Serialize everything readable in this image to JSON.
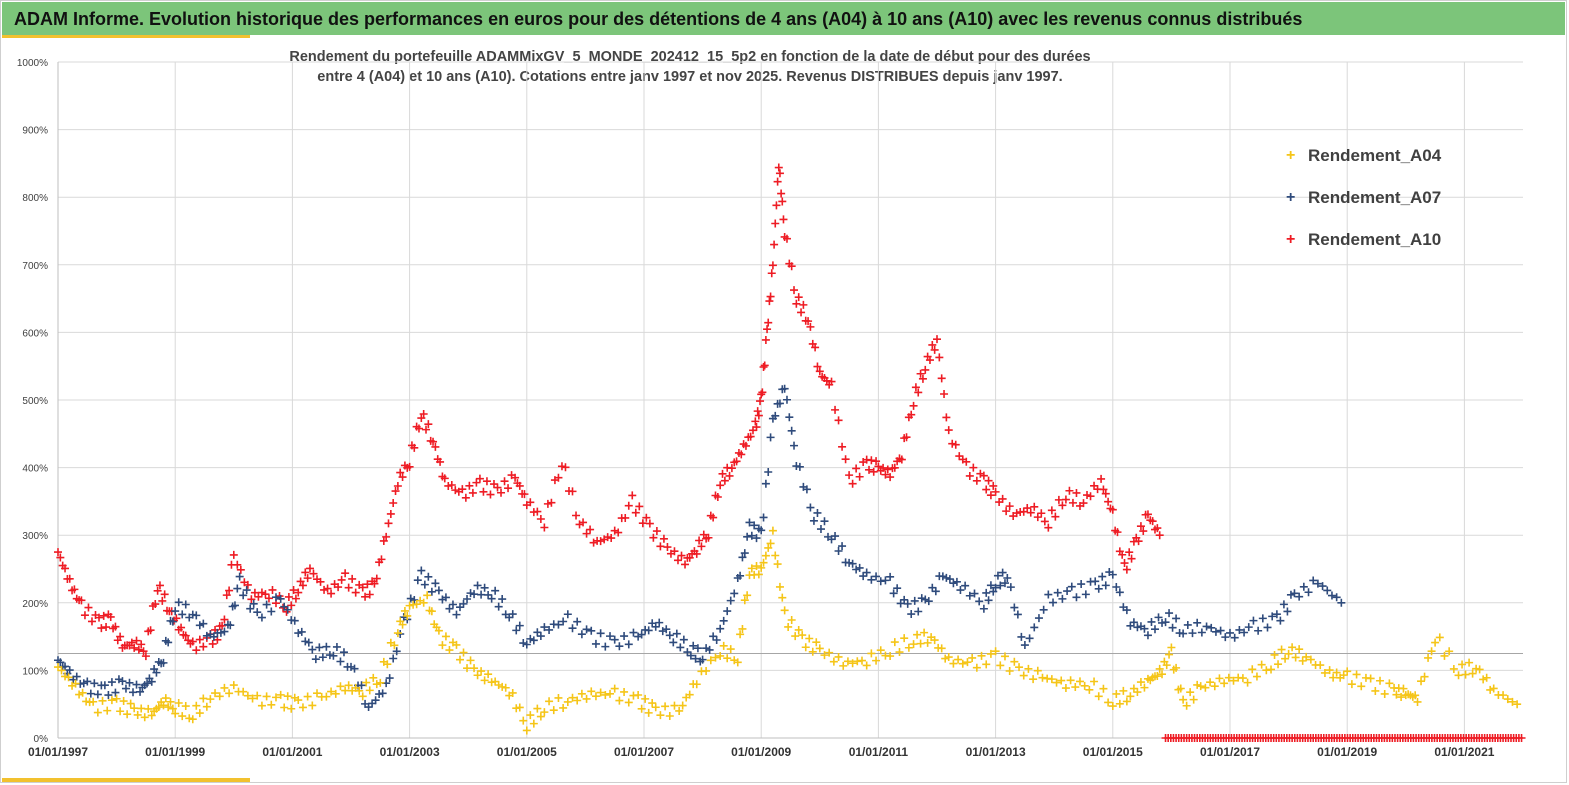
{
  "banner": {
    "title": "ADAM Informe. Evolution historique des performances en euros pour des détentions de 4 ans (A04) à 10 ans (A10) avec les revenus connus distribués"
  },
  "colors": {
    "banner_bg": "#7cc57a",
    "accent": "#f2c12e",
    "A04": "#f5c518",
    "A07": "#2f4b7c",
    "A10": "#ee1c24",
    "grid": "#d9d9d9"
  },
  "chart_data": {
    "type": "scatter",
    "marker": "+",
    "title_line1": "Rendement du portefeuille ADAMMixGV_5_MONDE_202412_15_5p2 en fonction de la date de début pour des durées",
    "title_line2": "entre 4 (A04) et 10 ans (A10). Cotations entre janv 1997 et nov 2025. Revenus DISTRIBUES depuis janv 1997.",
    "xlabel": "",
    "ylabel": "",
    "x_range": [
      1997.0,
      2022.0
    ],
    "ylim": [
      0,
      1000
    ],
    "x_ticks": [
      "01/01/1997",
      "01/01/1999",
      "01/01/2001",
      "01/01/2003",
      "01/01/2005",
      "01/01/2007",
      "01/01/2009",
      "01/01/2011",
      "01/01/2013",
      "01/01/2015",
      "01/01/2017",
      "01/01/2019",
      "01/01/2021"
    ],
    "y_ticks": [
      "0%",
      "100%",
      "200%",
      "300%",
      "400%",
      "500%",
      "600%",
      "700%",
      "800%",
      "900%",
      "1000%"
    ],
    "y_tick_values": [
      0,
      100,
      200,
      300,
      400,
      500,
      600,
      700,
      800,
      900,
      1000
    ],
    "reference_line": 125,
    "grid": true,
    "legend_position": "top-right",
    "series": [
      {
        "name": "Rendement_A04",
        "x": [
          1997.0,
          1997.3,
          1997.6,
          1998.0,
          1998.3,
          1998.6,
          1998.8,
          1999.0,
          1999.3,
          1999.6,
          2000.0,
          2000.4,
          2000.8,
          2001.1,
          2001.5,
          2001.9,
          2002.2,
          2002.5,
          2002.8,
          2003.0,
          2003.3,
          2003.5,
          2003.8,
          2004.1,
          2004.4,
          2004.7,
          2005.0,
          2005.3,
          2005.7,
          2006.1,
          2006.5,
          2006.9,
          2007.2,
          2007.6,
          2007.9,
          2008.3,
          2008.6,
          2008.8,
          2009.0,
          2009.2,
          2009.4,
          2009.7,
          2010.0,
          2010.4,
          2010.8,
          2011.2,
          2011.6,
          2011.9,
          2012.2,
          2012.6,
          2013.0,
          2013.4,
          2013.8,
          2014.2,
          2014.6,
          2015.0,
          2015.3,
          2015.6,
          2015.8,
          2016.0,
          2016.2,
          2016.5,
          2016.9,
          2017.3,
          2017.7,
          2018.0,
          2018.3,
          2018.7,
          2019.0,
          2019.4,
          2019.8,
          2020.0,
          2020.2,
          2020.5,
          2020.9,
          2021.2,
          2021.5,
          2021.9
        ],
        "y": [
          105,
          75,
          45,
          50,
          40,
          35,
          55,
          45,
          35,
          60,
          75,
          55,
          55,
          50,
          60,
          75,
          70,
          90,
          160,
          195,
          205,
          150,
          130,
          100,
          85,
          70,
          20,
          45,
          55,
          65,
          65,
          55,
          40,
          40,
          85,
          130,
          120,
          245,
          250,
          300,
          180,
          145,
          130,
          110,
          115,
          130,
          145,
          150,
          115,
          110,
          120,
          100,
          90,
          80,
          80,
          55,
          65,
          85,
          95,
          125,
          50,
          75,
          85,
          90,
          110,
          130,
          120,
          95,
          90,
          80,
          70,
          65,
          60,
          150,
          100,
          105,
          70,
          50
        ]
      },
      {
        "name": "Rendement_A07",
        "x": [
          1997.0,
          1997.2,
          1997.5,
          1997.8,
          1998.1,
          1998.4,
          1998.6,
          1998.8,
          1999.0,
          1999.3,
          1999.6,
          1999.9,
          2000.1,
          2000.4,
          2000.8,
          2001.1,
          2001.4,
          2001.7,
          2002.0,
          2002.3,
          2002.6,
          2002.9,
          2003.2,
          2003.5,
          2003.8,
          2004.1,
          2004.4,
          2004.7,
          2005.0,
          2005.3,
          2005.7,
          2006.1,
          2006.5,
          2006.9,
          2007.2,
          2007.5,
          2007.8,
          2008.0,
          2008.3,
          2008.6,
          2008.8,
          2009.0,
          2009.2,
          2009.4,
          2009.6,
          2009.9,
          2010.2,
          2010.5,
          2010.8,
          2011.2,
          2011.5,
          2011.8,
          2012.1,
          2012.4,
          2012.8,
          2013.0,
          2013.2,
          2013.5,
          2013.9,
          2014.3,
          2014.7,
          2015.0,
          2015.3,
          2015.6,
          2015.9,
          2016.2,
          2016.6,
          2017.0,
          2017.4,
          2017.8,
          2018.1,
          2018.5,
          2018.9
        ],
        "y": [
          115,
          95,
          75,
          70,
          80,
          70,
          90,
          120,
          195,
          185,
          150,
          160,
          230,
          180,
          205,
          160,
          125,
          130,
          110,
          45,
          75,
          170,
          240,
          215,
          185,
          220,
          215,
          185,
          140,
          160,
          175,
          150,
          140,
          150,
          170,
          150,
          130,
          120,
          160,
          230,
          310,
          300,
          470,
          520,
          410,
          330,
          300,
          260,
          240,
          230,
          190,
          200,
          240,
          225,
          200,
          230,
          240,
          135,
          205,
          215,
          225,
          240,
          170,
          160,
          180,
          160,
          165,
          150,
          165,
          175,
          210,
          230,
          200
        ]
      },
      {
        "name": "Rendement_A10",
        "x": [
          1997.0,
          1997.2,
          1997.4,
          1997.7,
          1997.9,
          1998.1,
          1998.3,
          1998.5,
          1998.7,
          1998.9,
          1999.1,
          1999.3,
          1999.6,
          1999.8,
          2000.0,
          2000.3,
          2000.6,
          2000.9,
          2001.1,
          2001.3,
          2001.6,
          2001.9,
          2002.2,
          2002.4,
          2002.6,
          2002.8,
          2003.0,
          2003.2,
          2003.4,
          2003.6,
          2003.9,
          2004.2,
          2004.5,
          2004.8,
          2005.0,
          2005.3,
          2005.6,
          2005.9,
          2006.2,
          2006.5,
          2006.8,
          2007.1,
          2007.4,
          2007.7,
          2007.9,
          2008.1,
          2008.3,
          2008.5,
          2008.7,
          2008.9,
          2009.0,
          2009.1,
          2009.2,
          2009.3,
          2009.4,
          2009.6,
          2009.8,
          2010.0,
          2010.2,
          2010.5,
          2010.8,
          2011.0,
          2011.2,
          2011.4,
          2011.6,
          2011.8,
          2012.0,
          2012.2,
          2012.5,
          2012.8,
          2013.0,
          2013.3,
          2013.6,
          2013.9,
          2014.2,
          2014.5,
          2014.8,
          2015.0,
          2015.2,
          2015.4,
          2015.6,
          2015.8
        ],
        "y": [
          275,
          230,
          195,
          170,
          175,
          135,
          140,
          130,
          225,
          190,
          160,
          135,
          145,
          160,
          270,
          210,
          215,
          195,
          220,
          250,
          215,
          235,
          215,
          225,
          300,
          380,
          410,
          480,
          440,
          380,
          360,
          375,
          365,
          385,
          350,
          320,
          410,
          320,
          290,
          300,
          350,
          310,
          280,
          260,
          280,
          305,
          380,
          400,
          430,
          460,
          500,
          600,
          700,
          850,
          750,
          650,
          620,
          540,
          520,
          380,
          405,
          400,
          390,
          420,
          500,
          550,
          590,
          450,
          400,
          380,
          360,
          330,
          340,
          320,
          360,
          350,
          380,
          330,
          250,
          290,
          330,
          300
        ]
      },
      {
        "name": "",
        "x_start": 2015.9,
        "x_end": 2022.0,
        "y": 0
      }
    ]
  }
}
